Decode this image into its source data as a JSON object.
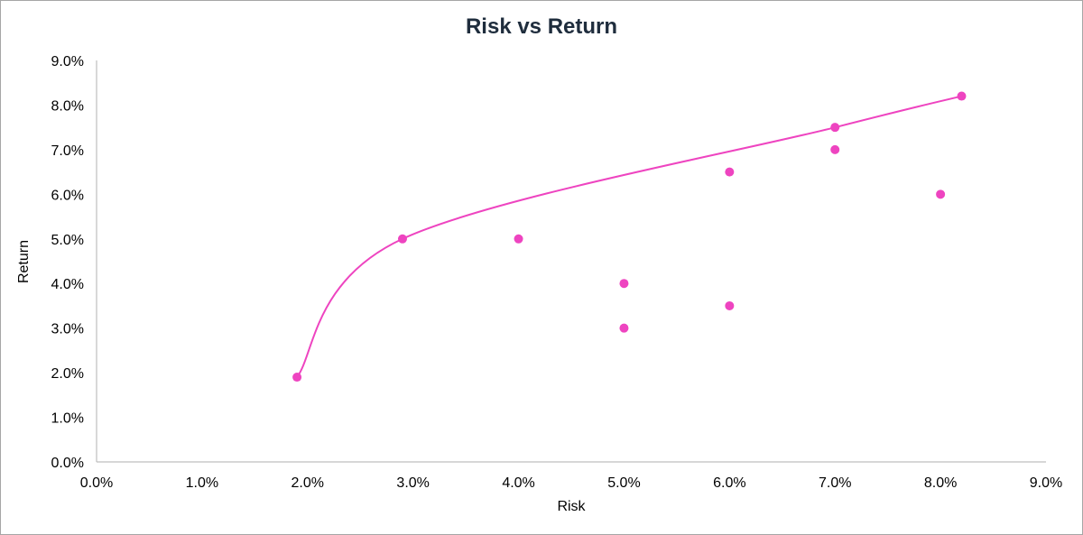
{
  "chart_data": {
    "type": "scatter",
    "title": "Risk vs Return",
    "xlabel": "Risk",
    "ylabel": "Return",
    "xlim": [
      0,
      9
    ],
    "ylim": [
      0,
      9
    ],
    "x_ticks": [
      "0.0%",
      "1.0%",
      "2.0%",
      "3.0%",
      "4.0%",
      "5.0%",
      "6.0%",
      "7.0%",
      "8.0%",
      "9.0%"
    ],
    "y_ticks": [
      "0.0%",
      "1.0%",
      "2.0%",
      "3.0%",
      "4.0%",
      "5.0%",
      "6.0%",
      "7.0%",
      "8.0%",
      "9.0%"
    ],
    "grid": false,
    "legend": "none",
    "color": "#ee44c0",
    "series": [
      {
        "type": "scatter",
        "points": [
          {
            "x": 4.0,
            "y": 5.0
          },
          {
            "x": 5.0,
            "y": 4.0
          },
          {
            "x": 5.0,
            "y": 3.0
          },
          {
            "x": 6.0,
            "y": 6.5
          },
          {
            "x": 6.0,
            "y": 3.5
          },
          {
            "x": 7.0,
            "y": 7.0
          },
          {
            "x": 8.0,
            "y": 6.0
          }
        ]
      },
      {
        "type": "line",
        "smooth": true,
        "points": [
          {
            "x": 1.9,
            "y": 1.9
          },
          {
            "x": 2.9,
            "y": 5.0
          },
          {
            "x": 7.0,
            "y": 7.5
          },
          {
            "x": 8.2,
            "y": 8.2
          }
        ]
      }
    ]
  }
}
